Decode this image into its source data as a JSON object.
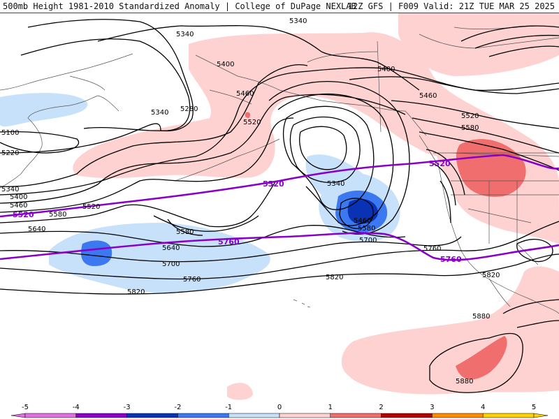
{
  "header": {
    "title_left": "500mb Height 1981-2010 Standardized Anomaly | College of DuPage NEXLAB",
    "title_right": "12Z GFS | F009 Valid: 21Z TUE MAR 25 2025"
  },
  "colors": {
    "neg_5": "#e070e0",
    "neg_4": "#8c00c8",
    "neg_3": "#0a32b4",
    "neg_2": "#3c78f0",
    "neg_1": "#c8e1fa",
    "pos_1": "#ffd2d2",
    "pos_2": "#f06e6e",
    "pos_3": "#b40000",
    "pos_4": "#ff8c00",
    "pos_5": "#ffd200",
    "contour": "#000000",
    "highlight_contour": "#8a00c8",
    "coast": "#555555"
  },
  "colorbar": {
    "ticks": [
      "-5",
      "-4",
      "-3",
      "-2",
      "-1",
      "0",
      "1",
      "2",
      "3",
      "4",
      "5"
    ]
  },
  "contour_labels": [
    "5340",
    "5400",
    "5280",
    "5340",
    "5100",
    "5220",
    "5340",
    "5400",
    "5460",
    "5520",
    "5580",
    "5640",
    "5580",
    "5640",
    "5700",
    "5760",
    "5820",
    "5460",
    "5520",
    "5340",
    "5460",
    "5580",
    "5700",
    "5760",
    "5820",
    "5340",
    "5400",
    "5460",
    "5520",
    "5580",
    "5880",
    "5880"
  ],
  "purple_labels": [
    "5520",
    "5520",
    "5520",
    "5760",
    "5760"
  ]
}
